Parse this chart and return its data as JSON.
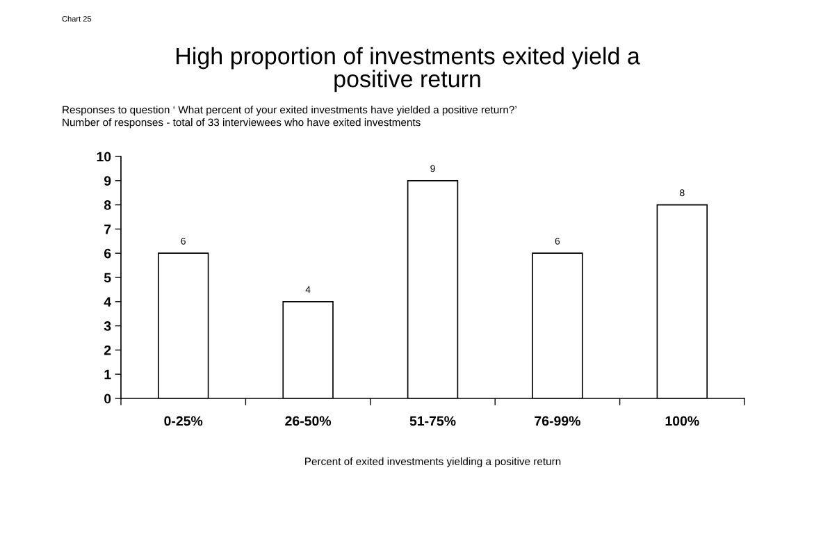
{
  "chart_data": {
    "type": "bar",
    "title": "High proportion of investments exited yield a\npositive return",
    "subtitle": "Responses to question ‘ What percent of your exited investments have yielded a positive return?’\nNumber of responses - total of 33 interviewees who have exited investments",
    "xlabel": "Percent of exited investments yielding a positive return",
    "annotations": [
      "Chart 25"
    ],
    "categories": [
      "0-25%",
      "26-50%",
      "51-75%",
      "76-99%",
      "100%"
    ],
    "values": [
      6,
      4,
      9,
      6,
      8
    ],
    "color": "#ffffff",
    "ylim": [
      0,
      10
    ],
    "yticks": [
      0,
      1,
      2,
      3,
      4,
      5,
      6,
      7,
      8,
      9,
      10
    ],
    "data_labels": true,
    "grid": false,
    "legend": false
  }
}
